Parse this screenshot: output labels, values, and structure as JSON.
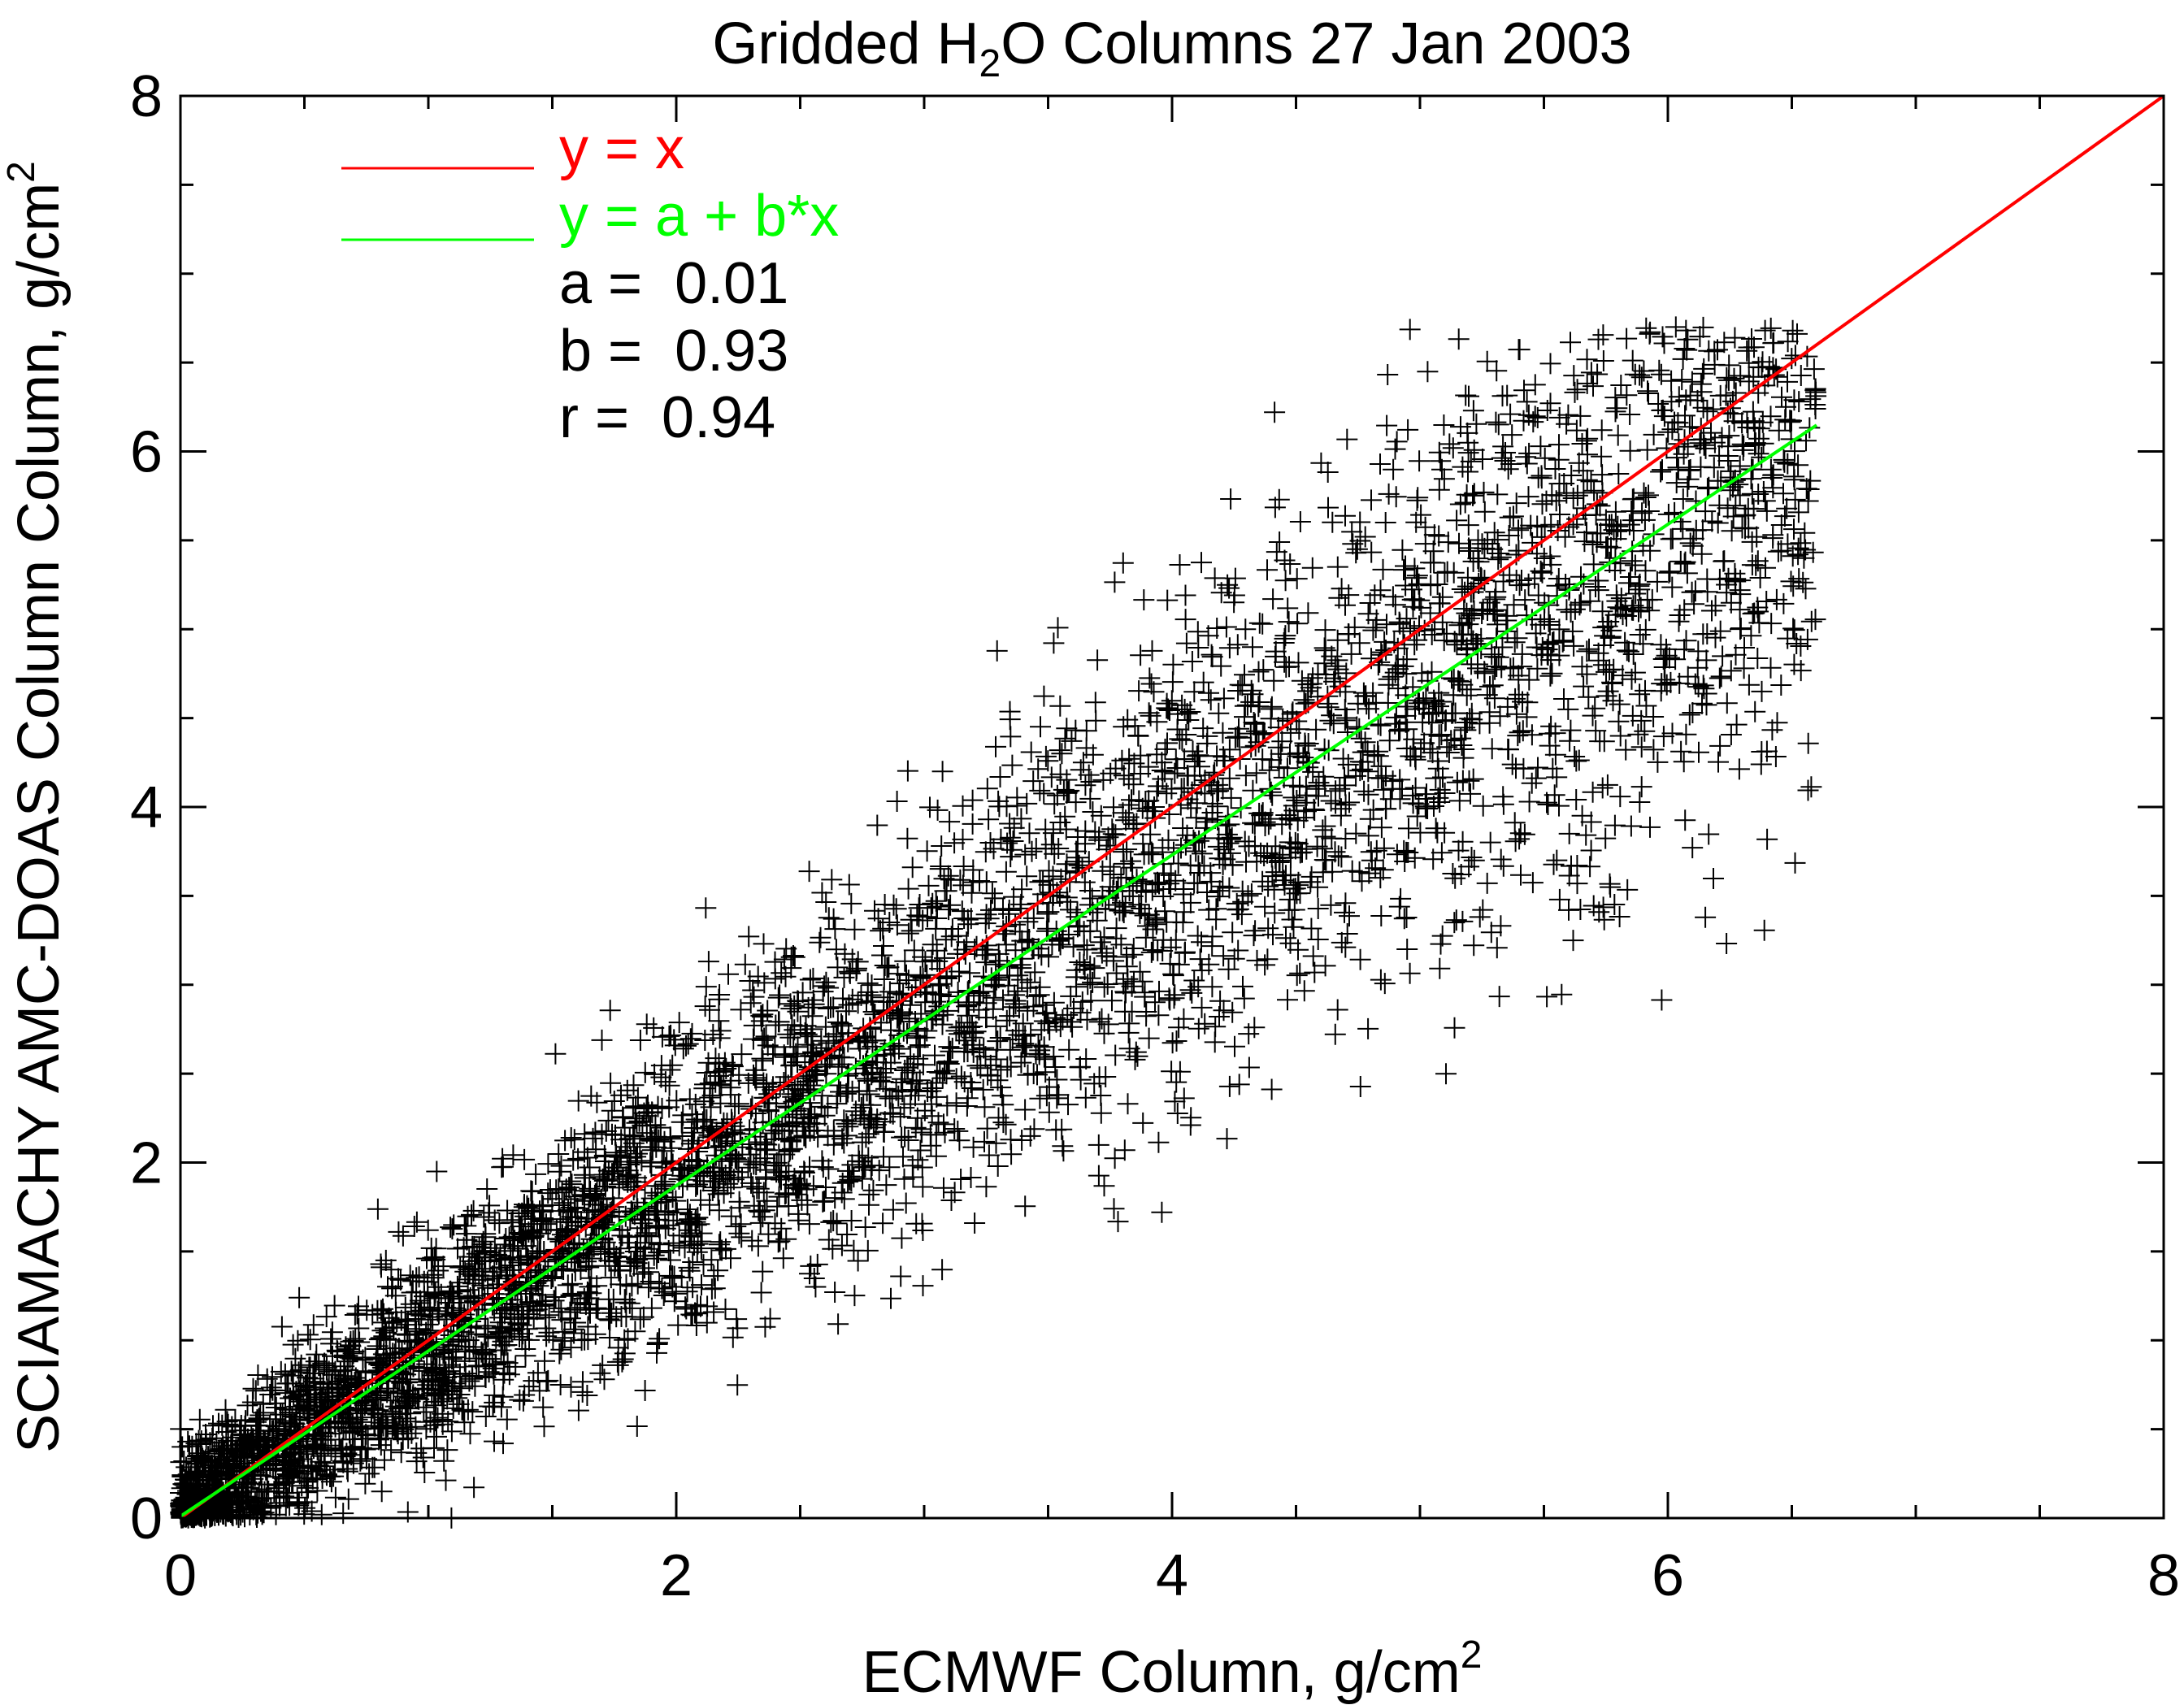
{
  "chart_data": {
    "type": "scatter",
    "title": {
      "pre": "Gridded H",
      "sub": "2",
      "post": "O Columns 27 Jan 2003"
    },
    "xlabel": {
      "main": "ECMWF Column, g/cm",
      "sup": "2"
    },
    "ylabel": {
      "main": "SCIAMACHY AMC-DOAS Column Column, g/cm",
      "sup": "2"
    },
    "xlim": [
      0,
      8
    ],
    "ylim": [
      0,
      8
    ],
    "x_ticks": [
      "0",
      "2",
      "4",
      "6",
      "8"
    ],
    "y_ticks": [
      "0",
      "2",
      "4",
      "6",
      "8"
    ],
    "grid": false,
    "marker": "+",
    "lines": [
      {
        "label": "y = x",
        "a": 0.0,
        "b": 1.0,
        "x_range": [
          0,
          8
        ],
        "color": "#ff0000"
      },
      {
        "label": "y = a + b*x",
        "a": 0.01,
        "b": 0.93,
        "x_range": [
          0,
          6.6
        ],
        "color": "#00ff00"
      }
    ],
    "fit_stats": [
      {
        "label": "a = ",
        "value": "0.01"
      },
      {
        "label": "b = ",
        "value": "0.93"
      },
      {
        "label": "r = ",
        "value": "0.94"
      }
    ],
    "points": {
      "description_n": 6000,
      "x_range": [
        0,
        6.6
      ],
      "y_range": [
        0,
        6.7
      ],
      "fit_a": 0.01,
      "fit_b": 0.93,
      "r": 0.94
    },
    "colors": {
      "axes": "#000000",
      "points": "#000000",
      "identity": "#ff0000",
      "fit": "#00ff00"
    }
  }
}
